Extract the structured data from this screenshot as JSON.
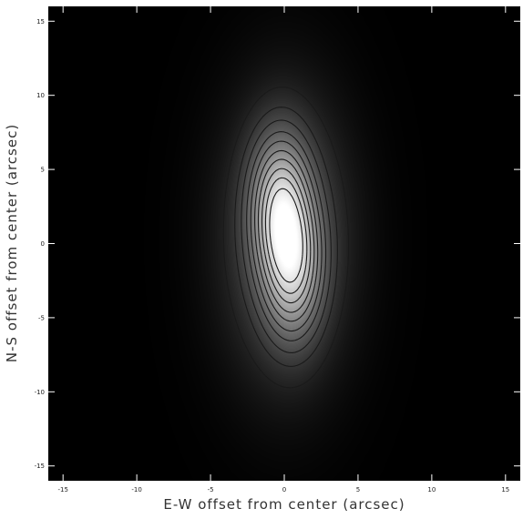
{
  "chart_data": {
    "type": "heatmap",
    "title": "",
    "xlabel": "E-W offset from center (arcsec)",
    "ylabel": "N-S offset from center (arcsec)",
    "xlim": [
      -16,
      16
    ],
    "ylim": [
      -16,
      16
    ],
    "x_ticks": [
      -15,
      -10,
      -5,
      0,
      5,
      10,
      15
    ],
    "y_ticks": [
      -15,
      -10,
      -5,
      0,
      5,
      10,
      15
    ],
    "colormap": "grayscale",
    "background_color": "#000000",
    "contour_color": "#1a1a1a",
    "source": {
      "description": "elongated emission peaked near center, major axis roughly N-S tilted slightly",
      "center": [
        0.2,
        0.0
      ],
      "components": [
        {
          "x": -0.3,
          "y": 2.5,
          "sigma_x": 1.3,
          "sigma_y": 3.2,
          "amplitude": 1.0
        },
        {
          "x": 0.6,
          "y": -1.5,
          "sigma_x": 1.3,
          "sigma_y": 3.2,
          "amplitude": 0.95
        },
        {
          "x": 0.1,
          "y": 0.3,
          "sigma_x": 2.8,
          "sigma_y": 6.2,
          "amplitude": 0.45
        }
      ]
    },
    "contour_levels": [
      0.08,
      0.14,
      0.2,
      0.27,
      0.34,
      0.42,
      0.5,
      0.59,
      0.68,
      0.78
    ],
    "saturation_level": 0.9
  }
}
